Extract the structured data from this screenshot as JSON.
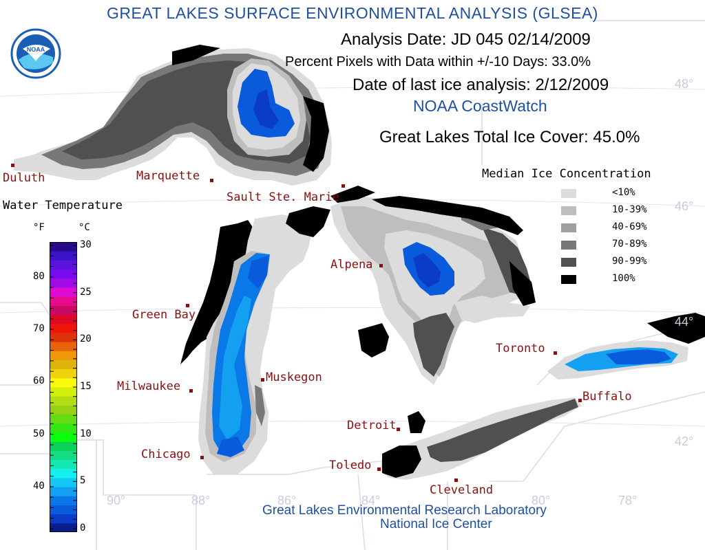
{
  "header": {
    "title": "GREAT LAKES SURFACE ENVIRONMENTAL ANALYSIS (GLSEA)",
    "analysis_date": "Analysis Date:  JD 045 02/14/2009",
    "percent_pixels": "Percent Pixels with Data within +/-10 Days:  33.0%",
    "last_ice": "Date of last ice analysis: 2/12/2009",
    "coastwatch": "NOAA CoastWatch",
    "ice_cover": "Great Lakes Total Ice Cover:  45.0%"
  },
  "logo": {
    "text": "NOAA",
    "icon": "noaa-logo"
  },
  "footer": {
    "line1": "Great Lakes Environmental Research Laboratory",
    "line2": "National Ice Center"
  },
  "cities": [
    "Duluth",
    "Marquette",
    "Sault Ste. Marie",
    "Green Bay",
    "Alpena",
    "Milwaukee",
    "Muskegon",
    "Toronto",
    "Buffalo",
    "Detroit",
    "Chicago",
    "Toledo",
    "Cleveland"
  ],
  "grid_labels": {
    "lat": [
      "48°",
      "46°",
      "44°",
      "42°"
    ],
    "lon": [
      "90°",
      "88°",
      "86°",
      "84°",
      "80°",
      "78°"
    ]
  },
  "water_temp": {
    "title": "Water Temperature",
    "unit_f": "°F",
    "unit_c": "°C",
    "f_ticks": [
      "80",
      "70",
      "60",
      "50",
      "40"
    ],
    "c_ticks": [
      "30",
      "25",
      "20",
      "15",
      "10",
      "5",
      "0"
    ],
    "colors": [
      "#0a1e8c",
      "#0a3cc8",
      "#0a5adc",
      "#0a78e6",
      "#14a0f0",
      "#14c8f5",
      "#14f0f0",
      "#14e6b4",
      "#14dc82",
      "#0ad25a",
      "#0aff0a",
      "#32e614",
      "#64dc14",
      "#96d214",
      "#b4dc14",
      "#d2f00a",
      "#fafa0a",
      "#f0d20a",
      "#dcb40a",
      "#f0960a",
      "#e6640a",
      "#dc320a",
      "#f0140a",
      "#dc0a28",
      "#c80a64",
      "#e60a8c",
      "#dc0ad2",
      "#a00ae6",
      "#780af0",
      "#5a14dc",
      "#3c14c8",
      "#280a8c"
    ]
  },
  "ice_legend": {
    "title": "Median Ice Concentration",
    "items": [
      {
        "label": "<10%",
        "color": "#dcdcdc"
      },
      {
        "label": "10-39%",
        "color": "#bebebe"
      },
      {
        "label": "40-69%",
        "color": "#a0a0a0"
      },
      {
        "label": "70-89%",
        "color": "#787878"
      },
      {
        "label": "90-99%",
        "color": "#505050"
      },
      {
        "label": "100%",
        "color": "#000000"
      }
    ]
  }
}
